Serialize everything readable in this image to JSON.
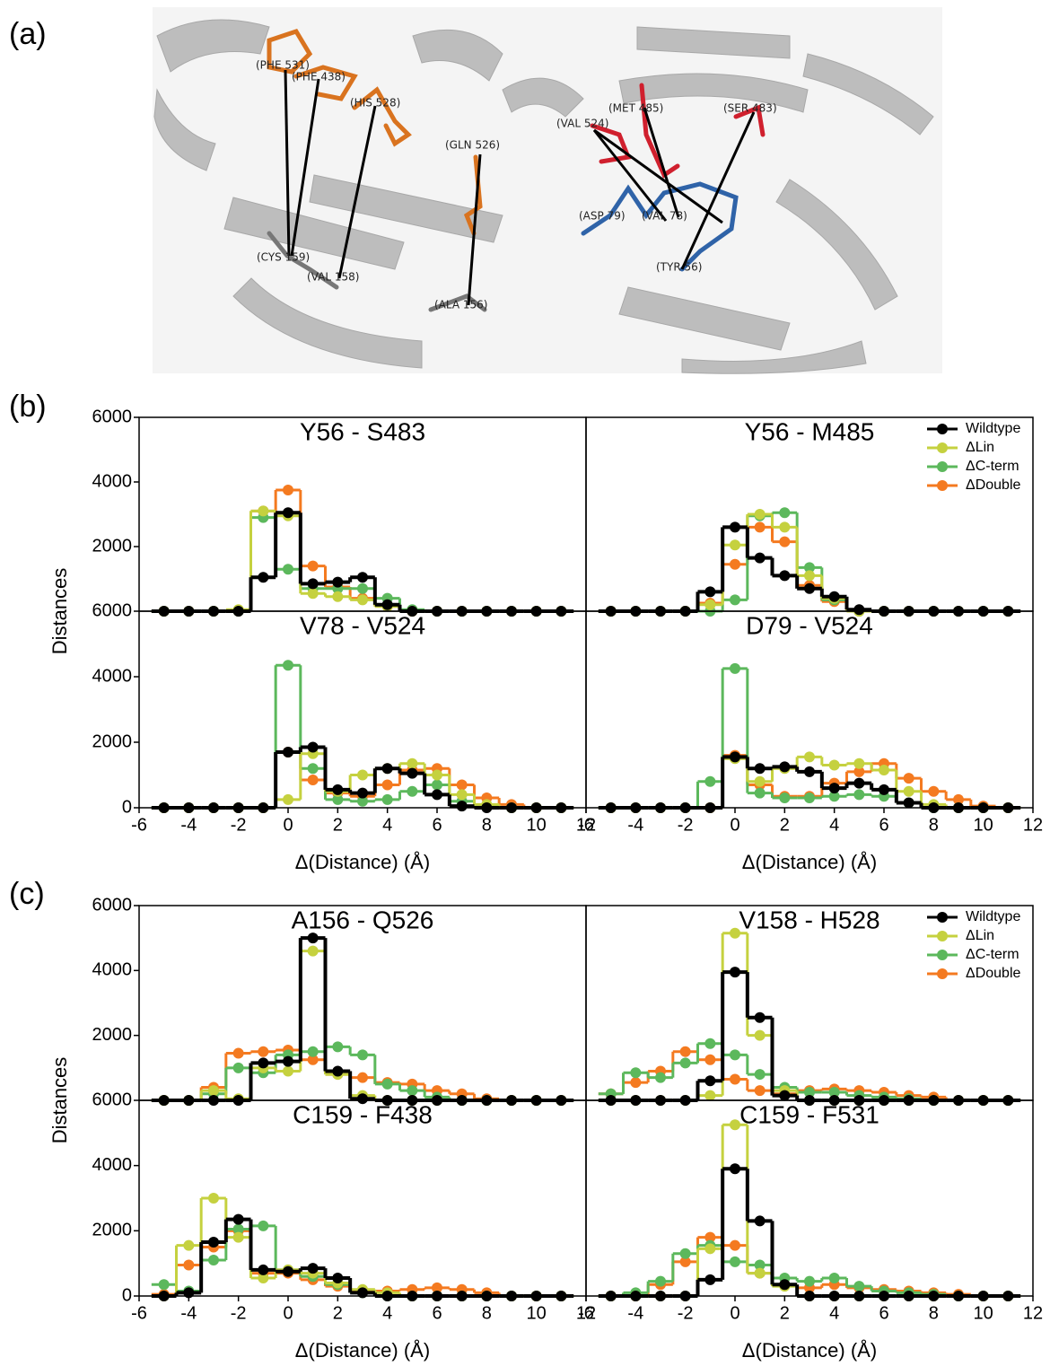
{
  "panel_labels": [
    "(a)",
    "(b)",
    "(c)"
  ],
  "panel_a": {
    "residues": [
      "(PHE 531)",
      "(PHE 438)",
      "(HIS 528)",
      "(GLN 526)",
      "(CYS 159)",
      "(VAL 158)",
      "(ALA 156)",
      "(VAL 524)",
      "(MET 485)",
      "(SER 483)",
      "(ASP 79)",
      "(VAL 78)",
      "(TYR 56)"
    ]
  },
  "chart_data": [
    {
      "type": "step",
      "title": "Y56 - S483",
      "ylabel": "Distances",
      "x": [
        -5,
        -4,
        -3,
        -2,
        -1,
        0,
        1,
        2,
        3,
        4,
        5,
        6,
        7,
        8,
        9,
        10,
        11
      ],
      "xlim": [
        -6,
        12
      ],
      "ylim": [
        0,
        6000
      ],
      "yticks": [
        2000,
        4000,
        6000
      ],
      "series": [
        {
          "name": "Wildtype",
          "color": "#000000",
          "values": [
            0,
            0,
            0,
            0,
            1050,
            3050,
            850,
            900,
            1050,
            200,
            0,
            0,
            0,
            0,
            0,
            0,
            0
          ]
        },
        {
          "name": "ΔLin",
          "color": "#c5d13f",
          "values": [
            0,
            0,
            0,
            50,
            3100,
            2950,
            550,
            450,
            350,
            150,
            0,
            0,
            0,
            0,
            0,
            0,
            0
          ]
        },
        {
          "name": "ΔC-term",
          "color": "#5cb85c",
          "values": [
            0,
            0,
            0,
            0,
            2900,
            1300,
            700,
            700,
            700,
            400,
            50,
            0,
            0,
            0,
            0,
            0,
            0
          ]
        },
        {
          "name": "ΔDouble",
          "color": "#f47a20",
          "values": [
            0,
            0,
            0,
            0,
            3100,
            3750,
            1400,
            750,
            400,
            150,
            0,
            0,
            0,
            0,
            0,
            0,
            0
          ]
        }
      ]
    },
    {
      "type": "step",
      "title": "Y56 - M485",
      "legend": "upper right",
      "x": [
        -5,
        -4,
        -3,
        -2,
        -1,
        0,
        1,
        2,
        3,
        4,
        5,
        6,
        7,
        8,
        9,
        10,
        11
      ],
      "xlim": [
        -6,
        12
      ],
      "ylim": [
        0,
        6000
      ],
      "series": [
        {
          "name": "Wildtype",
          "color": "#000000",
          "values": [
            0,
            0,
            0,
            0,
            600,
            2600,
            1650,
            1100,
            700,
            450,
            50,
            0,
            0,
            0,
            0,
            0,
            0
          ]
        },
        {
          "name": "ΔLin",
          "color": "#c5d13f",
          "values": [
            0,
            0,
            0,
            0,
            200,
            2050,
            3000,
            2600,
            1100,
            400,
            0,
            0,
            0,
            0,
            0,
            0,
            0
          ]
        },
        {
          "name": "ΔC-term",
          "color": "#5cb85c",
          "values": [
            0,
            0,
            0,
            0,
            0,
            350,
            2950,
            3050,
            1350,
            350,
            0,
            0,
            0,
            0,
            0,
            0,
            0
          ]
        },
        {
          "name": "ΔDouble",
          "color": "#f47a20",
          "values": [
            0,
            0,
            0,
            0,
            250,
            1450,
            2600,
            2150,
            800,
            300,
            0,
            0,
            0,
            0,
            0,
            0,
            0
          ]
        }
      ]
    },
    {
      "type": "step",
      "title": "V78 - V524",
      "xlabel": "Δ(Distance) (Å)",
      "x": [
        -5,
        -4,
        -3,
        -2,
        -1,
        0,
        1,
        2,
        3,
        4,
        5,
        6,
        7,
        8,
        9,
        10,
        11
      ],
      "xlim": [
        -6,
        12
      ],
      "ylim": [
        0,
        6000
      ],
      "yticks": [
        0,
        2000,
        4000,
        6000
      ],
      "xticks": [
        -6,
        -4,
        -2,
        0,
        2,
        4,
        6,
        8,
        10,
        12
      ],
      "series": [
        {
          "name": "Wildtype",
          "color": "#000000",
          "values": [
            0,
            0,
            0,
            0,
            0,
            1700,
            1850,
            550,
            450,
            1200,
            1050,
            400,
            50,
            0,
            0,
            0,
            0
          ]
        },
        {
          "name": "ΔLin",
          "color": "#c5d13f",
          "values": [
            0,
            0,
            0,
            0,
            0,
            250,
            1650,
            500,
            1000,
            1200,
            1350,
            1000,
            400,
            100,
            0,
            0,
            0
          ]
        },
        {
          "name": "ΔC-term",
          "color": "#5cb85c",
          "values": [
            0,
            0,
            0,
            0,
            0,
            4350,
            1200,
            250,
            200,
            250,
            500,
            700,
            200,
            50,
            0,
            0,
            0
          ]
        },
        {
          "name": "ΔDouble",
          "color": "#f47a20",
          "values": [
            0,
            0,
            0,
            0,
            0,
            1700,
            850,
            450,
            350,
            700,
            1150,
            1200,
            700,
            300,
            100,
            0,
            0
          ]
        }
      ]
    },
    {
      "type": "step",
      "title": "D79 - V524",
      "xlabel": "Δ(Distance) (Å)",
      "x": [
        -5,
        -4,
        -3,
        -2,
        -1,
        0,
        1,
        2,
        3,
        4,
        5,
        6,
        7,
        8,
        9,
        10,
        11
      ],
      "xlim": [
        -6,
        12
      ],
      "ylim": [
        0,
        6000
      ],
      "xticks": [
        -6,
        -4,
        -2,
        0,
        2,
        4,
        6,
        8,
        10,
        12
      ],
      "series": [
        {
          "name": "Wildtype",
          "color": "#000000",
          "values": [
            0,
            0,
            0,
            0,
            0,
            1550,
            1200,
            1250,
            1100,
            600,
            750,
            550,
            150,
            0,
            0,
            0,
            0
          ]
        },
        {
          "name": "ΔLin",
          "color": "#c5d13f",
          "values": [
            0,
            0,
            0,
            0,
            0,
            1500,
            800,
            1200,
            1550,
            1300,
            1350,
            1150,
            500,
            100,
            0,
            0,
            0
          ]
        },
        {
          "name": "ΔC-term",
          "color": "#5cb85c",
          "values": [
            0,
            0,
            0,
            0,
            800,
            4250,
            450,
            300,
            300,
            350,
            400,
            350,
            150,
            0,
            0,
            0,
            0
          ]
        },
        {
          "name": "ΔDouble",
          "color": "#f47a20",
          "values": [
            0,
            0,
            0,
            0,
            0,
            1600,
            700,
            350,
            350,
            750,
            1100,
            1350,
            900,
            500,
            250,
            50,
            0
          ]
        }
      ]
    },
    {
      "type": "step",
      "title": "A156 - Q526",
      "ylabel": "Distances",
      "x": [
        -5,
        -4,
        -3,
        -2,
        -1,
        0,
        1,
        2,
        3,
        4,
        5,
        6,
        7,
        8,
        9,
        10,
        11
      ],
      "xlim": [
        -6,
        12
      ],
      "ylim": [
        0,
        6000
      ],
      "yticks": [
        2000,
        4000,
        6000
      ],
      "series": [
        {
          "name": "Wildtype",
          "color": "#000000",
          "values": [
            0,
            0,
            0,
            0,
            1150,
            1200,
            5000,
            900,
            50,
            0,
            0,
            0,
            0,
            0,
            0,
            0,
            0
          ]
        },
        {
          "name": "ΔLin",
          "color": "#c5d13f",
          "values": [
            0,
            0,
            300,
            50,
            1000,
            900,
            4600,
            800,
            150,
            0,
            0,
            0,
            0,
            0,
            0,
            0,
            0
          ]
        },
        {
          "name": "ΔC-term",
          "color": "#5cb85c",
          "values": [
            0,
            0,
            200,
            1000,
            850,
            1400,
            1500,
            1650,
            1400,
            500,
            300,
            100,
            0,
            0,
            0,
            0,
            0
          ]
        },
        {
          "name": "ΔDouble",
          "color": "#f47a20",
          "values": [
            0,
            0,
            400,
            1450,
            1500,
            1550,
            1250,
            800,
            700,
            550,
            500,
            300,
            200,
            50,
            0,
            0,
            0
          ]
        }
      ]
    },
    {
      "type": "step",
      "title": "V158 - H528",
      "legend": "upper right",
      "x": [
        -5,
        -4,
        -3,
        -2,
        -1,
        0,
        1,
        2,
        3,
        4,
        5,
        6,
        7,
        8,
        9,
        10,
        11
      ],
      "xlim": [
        -6,
        12
      ],
      "ylim": [
        0,
        6000
      ],
      "series": [
        {
          "name": "Wildtype",
          "color": "#000000",
          "values": [
            0,
            0,
            0,
            0,
            600,
            3950,
            2550,
            150,
            0,
            0,
            0,
            0,
            0,
            0,
            0,
            0,
            0
          ]
        },
        {
          "name": "ΔLin",
          "color": "#c5d13f",
          "values": [
            0,
            0,
            0,
            0,
            150,
            5150,
            2000,
            300,
            0,
            0,
            0,
            0,
            0,
            0,
            0,
            0,
            0
          ]
        },
        {
          "name": "ΔC-term",
          "color": "#5cb85c",
          "values": [
            200,
            850,
            700,
            1150,
            1750,
            1400,
            800,
            400,
            250,
            250,
            150,
            100,
            50,
            0,
            0,
            0,
            0
          ]
        },
        {
          "name": "ΔDouble",
          "color": "#f47a20",
          "values": [
            200,
            550,
            900,
            1500,
            1250,
            650,
            300,
            200,
            300,
            350,
            300,
            250,
            150,
            100,
            0,
            0,
            0
          ]
        }
      ]
    },
    {
      "type": "step",
      "title": "C159 - F438",
      "xlabel": "Δ(Distance) (Å)",
      "x": [
        -5,
        -4,
        -3,
        -2,
        -1,
        0,
        1,
        2,
        3,
        4,
        5,
        6,
        7,
        8,
        9,
        10,
        11
      ],
      "xlim": [
        -6,
        12
      ],
      "ylim": [
        0,
        6000
      ],
      "yticks": [
        0,
        2000,
        4000,
        6000
      ],
      "xticks": [
        -6,
        -4,
        -2,
        0,
        2,
        4,
        6,
        8,
        10,
        12
      ],
      "series": [
        {
          "name": "Wildtype",
          "color": "#000000",
          "values": [
            0,
            100,
            1650,
            2350,
            800,
            750,
            850,
            550,
            100,
            0,
            0,
            0,
            0,
            0,
            0,
            0,
            0
          ]
        },
        {
          "name": "ΔLin",
          "color": "#c5d13f",
          "values": [
            0,
            1550,
            3000,
            1800,
            550,
            800,
            700,
            400,
            200,
            100,
            0,
            0,
            0,
            0,
            0,
            0,
            0
          ]
        },
        {
          "name": "ΔC-term",
          "color": "#5cb85c",
          "values": [
            350,
            150,
            1100,
            2050,
            2150,
            800,
            600,
            350,
            100,
            0,
            0,
            0,
            0,
            0,
            0,
            0,
            0
          ]
        },
        {
          "name": "ΔDouble",
          "color": "#f47a20",
          "values": [
            50,
            950,
            1500,
            2000,
            700,
            700,
            500,
            300,
            150,
            150,
            200,
            250,
            200,
            100,
            0,
            0,
            0
          ]
        }
      ]
    },
    {
      "type": "step",
      "title": "C159 - F531",
      "xlabel": "Δ(Distance) (Å)",
      "x": [
        -5,
        -4,
        -3,
        -2,
        -1,
        0,
        1,
        2,
        3,
        4,
        5,
        6,
        7,
        8,
        9,
        10,
        11
      ],
      "xlim": [
        -6,
        12
      ],
      "ylim": [
        0,
        6000
      ],
      "xticks": [
        -6,
        -4,
        -2,
        0,
        2,
        4,
        6,
        8,
        10,
        12
      ],
      "series": [
        {
          "name": "Wildtype",
          "color": "#000000",
          "values": [
            0,
            0,
            0,
            0,
            500,
            3900,
            2300,
            350,
            0,
            0,
            0,
            0,
            0,
            0,
            0,
            0,
            0
          ]
        },
        {
          "name": "ΔLin",
          "color": "#c5d13f",
          "values": [
            0,
            0,
            0,
            0,
            1450,
            5250,
            700,
            300,
            0,
            0,
            0,
            0,
            0,
            0,
            0,
            0,
            0
          ]
        },
        {
          "name": "ΔC-term",
          "color": "#5cb85c",
          "values": [
            0,
            100,
            450,
            1300,
            1550,
            1050,
            950,
            550,
            450,
            550,
            300,
            150,
            100,
            50,
            0,
            0,
            0
          ]
        },
        {
          "name": "ΔDouble",
          "color": "#f47a20",
          "values": [
            0,
            0,
            350,
            1050,
            1800,
            1550,
            700,
            350,
            250,
            350,
            250,
            200,
            150,
            100,
            50,
            0,
            0
          ]
        }
      ]
    }
  ]
}
